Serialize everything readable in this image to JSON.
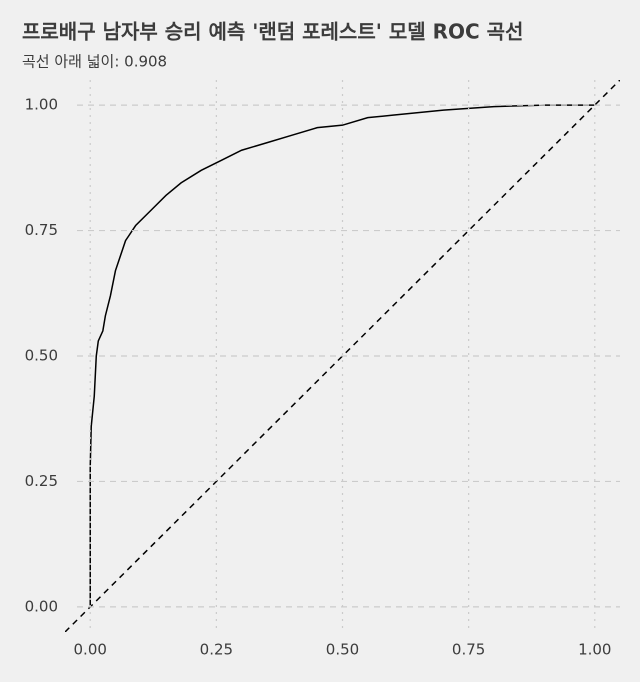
{
  "chart_data": {
    "type": "line",
    "title": "프로배구 남자부 승리 예측 '랜덤 포레스트' 모델 ROC 곡선",
    "subtitle": "곡선 아래 넓이: 0.908",
    "xlim": [
      -0.05,
      1.05
    ],
    "ylim": [
      -0.05,
      1.05
    ],
    "xticks": [
      {
        "value": 0,
        "label": "0.00"
      },
      {
        "value": 0.25,
        "label": "0.25"
      },
      {
        "value": 0.5,
        "label": "0.50"
      },
      {
        "value": 0.75,
        "label": "0.75"
      },
      {
        "value": 1,
        "label": "1.00"
      }
    ],
    "yticks": [
      {
        "value": 0,
        "label": "0.00"
      },
      {
        "value": 0.25,
        "label": "0.25"
      },
      {
        "value": 0.5,
        "label": "0.50"
      },
      {
        "value": 0.75,
        "label": "0.75"
      },
      {
        "value": 1,
        "label": "1.00"
      }
    ],
    "grid": true,
    "series": [
      {
        "color": "#000000",
        "dash": "solid",
        "x": [
          0,
          0,
          0.002,
          0.008,
          0.012,
          0.016,
          0.025,
          0.03,
          0.04,
          0.05,
          0.06,
          0.07,
          0.09,
          0.12,
          0.15,
          0.18,
          0.22,
          0.26,
          0.3,
          0.35,
          0.4,
          0.45,
          0.5,
          0.55,
          0.6,
          0.7,
          0.8,
          0.9,
          1.0
        ],
        "values": [
          0,
          0.28,
          0.36,
          0.42,
          0.5,
          0.53,
          0.55,
          0.58,
          0.62,
          0.67,
          0.7,
          0.73,
          0.76,
          0.79,
          0.82,
          0.845,
          0.87,
          0.89,
          0.91,
          0.925,
          0.94,
          0.955,
          0.96,
          0.975,
          0.98,
          0.99,
          0.997,
          1.0,
          1.0
        ]
      },
      {
        "color": "#000000",
        "dash": "dashed",
        "x": [
          -0.05,
          1.05
        ],
        "values": [
          -0.05,
          1.05
        ]
      }
    ]
  }
}
